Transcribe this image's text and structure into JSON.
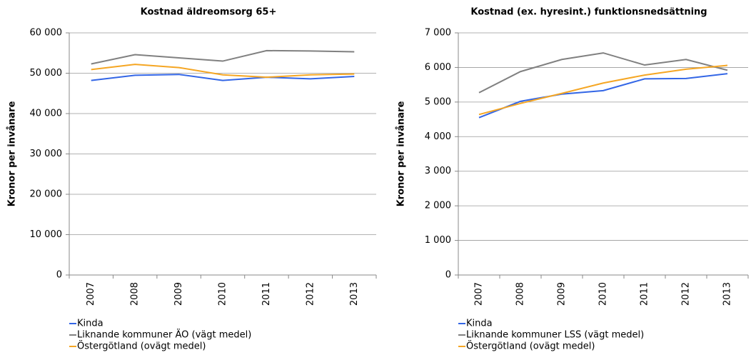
{
  "chart_data": [
    {
      "type": "line",
      "title": "Kostnad äldreomsorg 65+",
      "y_label": "Kronor per invånare",
      "categories": [
        "2007",
        "2008",
        "2009",
        "2010",
        "2011",
        "2012",
        "2013"
      ],
      "series": [
        {
          "name": "Kinda",
          "color": "#3366e6",
          "values": [
            48200,
            49500,
            49700,
            48200,
            49000,
            48600,
            49200
          ]
        },
        {
          "name": "Liknande kommuner ÄO (vägt medel)",
          "color": "#808080",
          "values": [
            52300,
            54600,
            53800,
            53000,
            55600,
            55500,
            55300
          ]
        },
        {
          "name": "Östergötland (ovägt medel)",
          "color": "#f5a623",
          "values": [
            50900,
            52200,
            51400,
            49600,
            49000,
            49600,
            49800
          ]
        }
      ],
      "ylim": [
        0,
        60000
      ],
      "yticks": [
        0,
        {
          "value": 10000,
          "label": "10 000"
        },
        {
          "value": 20000,
          "label": "20 000"
        },
        {
          "value": 30000,
          "label": "30 000"
        },
        {
          "value": 40000,
          "label": "40 000"
        },
        {
          "value": 50000,
          "label": "50 000"
        },
        {
          "value": 60000,
          "label": "60 000"
        }
      ],
      "grid": true
    },
    {
      "type": "line",
      "title": "Kostnad (ex. hyresint.) funktionsnedsättning",
      "y_label": "Kronor per invånare",
      "categories": [
        "2007",
        "2008",
        "2009",
        "2010",
        "2011",
        "2012",
        "2013"
      ],
      "series": [
        {
          "name": "Kinda",
          "color": "#3366e6",
          "values": [
            4550,
            5020,
            5230,
            5330,
            5670,
            5680,
            5820
          ]
        },
        {
          "name": "Liknande kommuner LSS (vägt medel)",
          "color": "#808080",
          "values": [
            5270,
            5880,
            6230,
            6420,
            6070,
            6230,
            5920
          ]
        },
        {
          "name": "Östergötland (ovägt medel)",
          "color": "#f5a623",
          "values": [
            4640,
            4960,
            5250,
            5550,
            5780,
            5950,
            6060
          ]
        }
      ],
      "ylim": [
        0,
        7000
      ],
      "yticks": [
        0,
        {
          "value": 1000,
          "label": "1 000"
        },
        {
          "value": 2000,
          "label": "2 000"
        },
        {
          "value": 3000,
          "label": "3 000"
        },
        {
          "value": 4000,
          "label": "4 000"
        },
        {
          "value": 5000,
          "label": "5 000"
        },
        {
          "value": 6000,
          "label": "6 000"
        },
        {
          "value": 7000,
          "label": "7 000"
        }
      ],
      "grid": true
    }
  ]
}
